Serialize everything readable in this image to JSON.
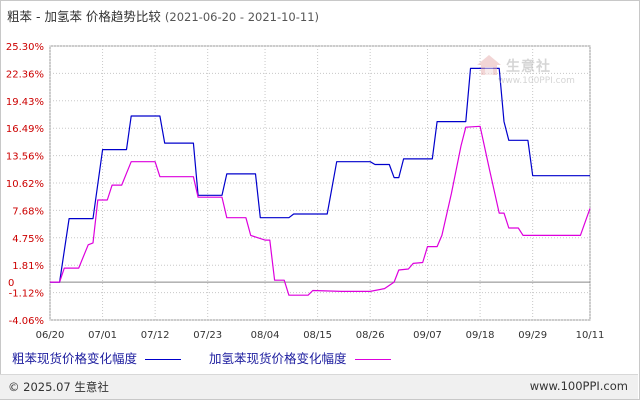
{
  "header": {
    "title": "粗苯 - 加氢苯 价格趋势比较",
    "date_range": "(2021-06-20 - 2021-10-11)"
  },
  "watermark": {
    "name": "生意社",
    "url": "www.100PPI.com"
  },
  "footer": {
    "copyright": "© 2025.07 生意社",
    "site": "www.100PPI.com"
  },
  "chart_data": {
    "type": "line",
    "x_tick_labels": [
      "06/20",
      "07/01",
      "07/12",
      "07/23",
      "08/04",
      "08/15",
      "08/26",
      "09/07",
      "09/18",
      "09/29",
      "10/11"
    ],
    "x_tick_dates": [
      "2021-06-20",
      "2021-07-01",
      "2021-07-12",
      "2021-07-23",
      "2021-08-04",
      "2021-08-15",
      "2021-08-26",
      "2021-09-07",
      "2021-09-18",
      "2021-09-29",
      "2021-10-11"
    ],
    "y_tick_labels": [
      "25.30%",
      "22.36%",
      "19.43%",
      "16.49%",
      "13.56%",
      "10.62%",
      "7.68%",
      "4.75%",
      "1.81%",
      "-1.12%",
      "-4.06%"
    ],
    "y_zero_label": "0",
    "ylim": [
      -4.06,
      25.3
    ],
    "xlim": [
      "2021-06-20",
      "2021-10-11"
    ],
    "grid": true,
    "legend_position": "bottom",
    "series": [
      {
        "name": "粗苯现货价格变化幅度",
        "color": "#0000cc",
        "points": [
          [
            "2021-06-20",
            0
          ],
          [
            "2021-06-22",
            0
          ],
          [
            "2021-06-24",
            6.8
          ],
          [
            "2021-06-29",
            6.8
          ],
          [
            "2021-07-01",
            14.2
          ],
          [
            "2021-07-06",
            14.2
          ],
          [
            "2021-07-07",
            17.8
          ],
          [
            "2021-07-13",
            17.8
          ],
          [
            "2021-07-14",
            14.9
          ],
          [
            "2021-07-20",
            14.9
          ],
          [
            "2021-07-21",
            9.3
          ],
          [
            "2021-07-26",
            9.3
          ],
          [
            "2021-07-27",
            11.6
          ],
          [
            "2021-08-02",
            11.6
          ],
          [
            "2021-08-03",
            6.9
          ],
          [
            "2021-08-09",
            6.9
          ],
          [
            "2021-08-10",
            7.3
          ],
          [
            "2021-08-17",
            7.3
          ],
          [
            "2021-08-19",
            12.9
          ],
          [
            "2021-08-26",
            12.9
          ],
          [
            "2021-08-27",
            12.6
          ],
          [
            "2021-08-30",
            12.6
          ],
          [
            "2021-08-31",
            11.2
          ],
          [
            "2021-09-01",
            11.2
          ],
          [
            "2021-09-02",
            13.2
          ],
          [
            "2021-09-08",
            13.2
          ],
          [
            "2021-09-09",
            17.2
          ],
          [
            "2021-09-15",
            17.2
          ],
          [
            "2021-09-16",
            22.9
          ],
          [
            "2021-09-22",
            22.9
          ],
          [
            "2021-09-23",
            17.2
          ],
          [
            "2021-09-24",
            15.2
          ],
          [
            "2021-09-28",
            15.2
          ],
          [
            "2021-09-29",
            11.4
          ],
          [
            "2021-10-11",
            11.4
          ]
        ]
      },
      {
        "name": "加氢苯现货价格变化幅度",
        "color": "#dd00dd",
        "points": [
          [
            "2021-06-20",
            0
          ],
          [
            "2021-06-22",
            0
          ],
          [
            "2021-06-23",
            1.5
          ],
          [
            "2021-06-26",
            1.5
          ],
          [
            "2021-06-28",
            4.0
          ],
          [
            "2021-06-29",
            4.2
          ],
          [
            "2021-06-30",
            8.8
          ],
          [
            "2021-07-02",
            8.8
          ],
          [
            "2021-07-03",
            10.4
          ],
          [
            "2021-07-05",
            10.4
          ],
          [
            "2021-07-07",
            12.9
          ],
          [
            "2021-07-12",
            12.9
          ],
          [
            "2021-07-13",
            11.3
          ],
          [
            "2021-07-20",
            11.3
          ],
          [
            "2021-07-21",
            9.1
          ],
          [
            "2021-07-26",
            9.1
          ],
          [
            "2021-07-27",
            6.9
          ],
          [
            "2021-07-31",
            6.9
          ],
          [
            "2021-08-01",
            5.0
          ],
          [
            "2021-08-04",
            4.5
          ],
          [
            "2021-08-05",
            4.5
          ],
          [
            "2021-08-06",
            0.2
          ],
          [
            "2021-08-08",
            0.2
          ],
          [
            "2021-08-09",
            -1.4
          ],
          [
            "2021-08-13",
            -1.4
          ],
          [
            "2021-08-14",
            -0.9
          ],
          [
            "2021-08-20",
            -1.0
          ],
          [
            "2021-08-26",
            -1.0
          ],
          [
            "2021-08-29",
            -0.7
          ],
          [
            "2021-08-31",
            0.0
          ],
          [
            "2021-09-01",
            1.3
          ],
          [
            "2021-09-03",
            1.4
          ],
          [
            "2021-09-04",
            2.0
          ],
          [
            "2021-09-06",
            2.1
          ],
          [
            "2021-09-07",
            3.8
          ],
          [
            "2021-09-09",
            3.8
          ],
          [
            "2021-09-10",
            5.0
          ],
          [
            "2021-09-12",
            9.5
          ],
          [
            "2021-09-14",
            14.6
          ],
          [
            "2021-09-15",
            16.6
          ],
          [
            "2021-09-18",
            16.7
          ],
          [
            "2021-09-20",
            12.0
          ],
          [
            "2021-09-22",
            7.4
          ],
          [
            "2021-09-23",
            7.4
          ],
          [
            "2021-09-24",
            5.8
          ],
          [
            "2021-09-26",
            5.8
          ],
          [
            "2021-09-27",
            5.0
          ],
          [
            "2021-10-09",
            5.0
          ],
          [
            "2021-10-11",
            7.9
          ]
        ]
      }
    ]
  }
}
